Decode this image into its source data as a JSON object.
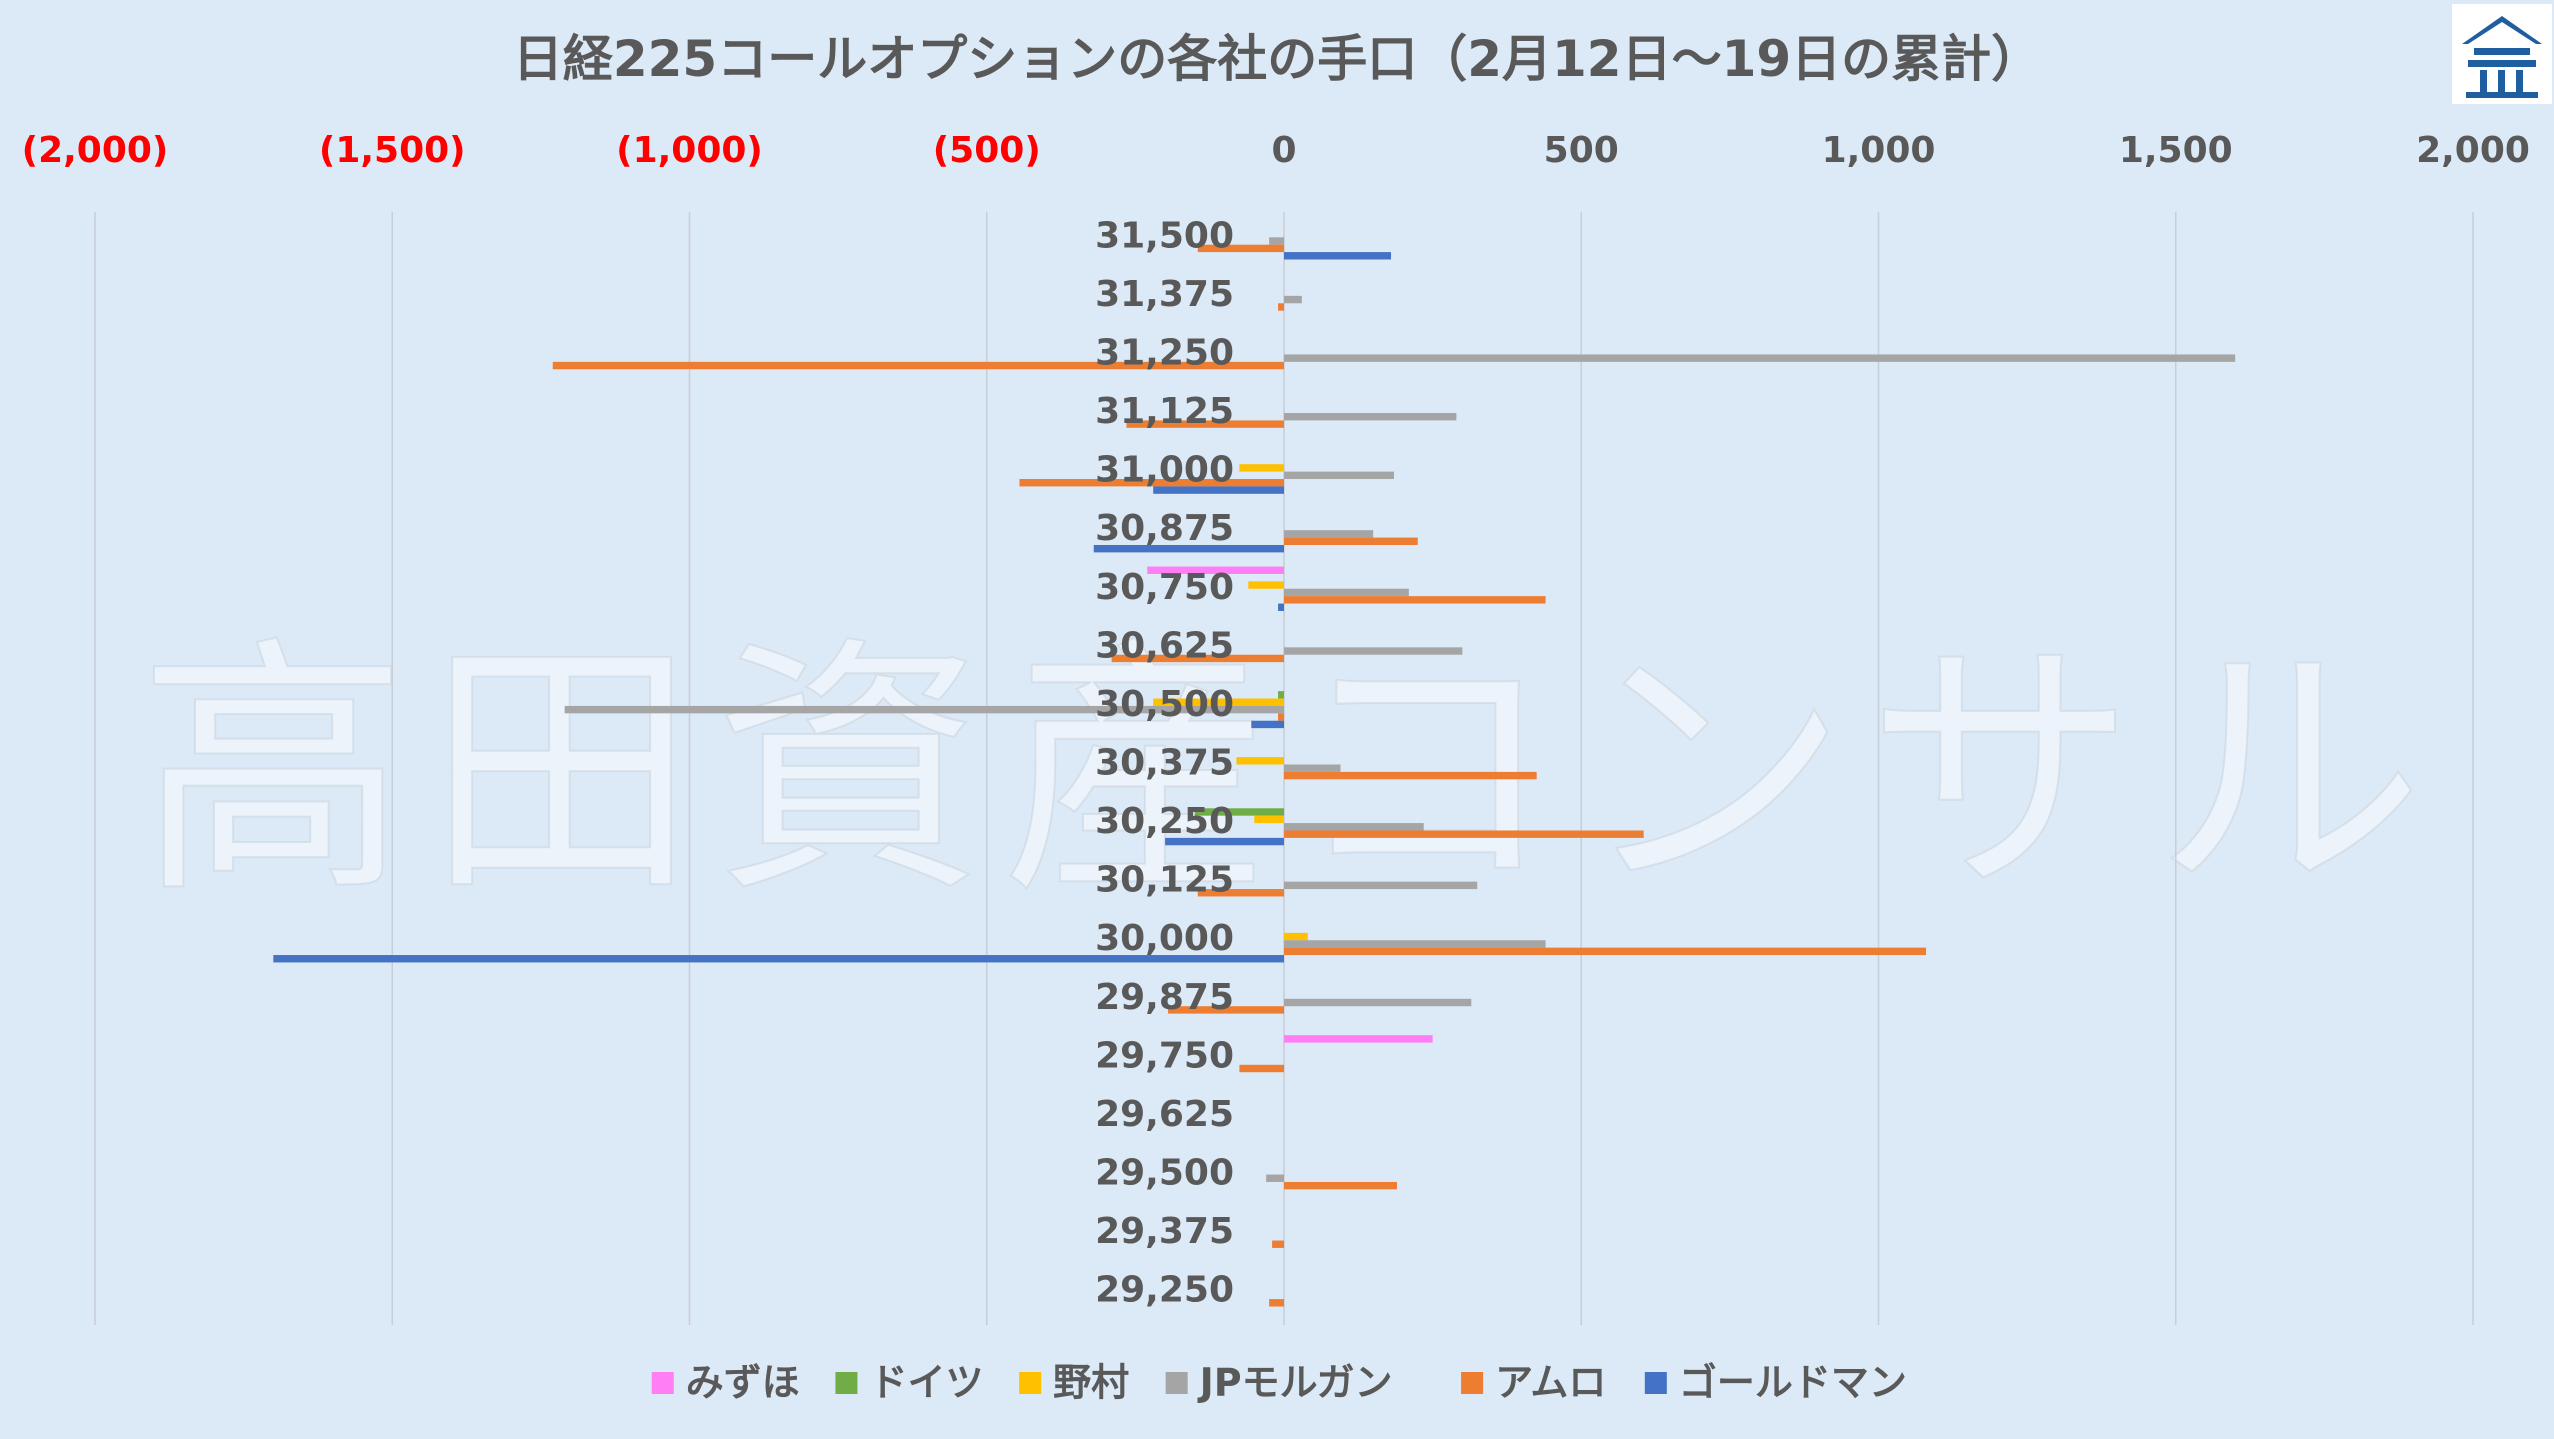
{
  "chart_data": {
    "type": "bar",
    "orientation": "horizontal",
    "title": "日経225コールオプションの各社の手口（2月12日～19日の累計）",
    "watermark": "高田資産コンサル",
    "xlim": [
      -2000,
      2000
    ],
    "x_ticks": [
      -2000,
      -1500,
      -1000,
      -500,
      0,
      500,
      1000,
      1500,
      2000
    ],
    "x_tick_labels": [
      "(2,000)",
      "(1,500)",
      "(1,000)",
      "(500)",
      "0",
      "500",
      "1,000",
      "1,500",
      "2,000"
    ],
    "negative_tick_color": "#ff0000",
    "positive_tick_color": "#595959",
    "grid": true,
    "legend_position": "bottom",
    "categories": [
      "31,500",
      "31,375",
      "31,250",
      "31,125",
      "31,000",
      "30,875",
      "30,750",
      "30,625",
      "30,500",
      "30,375",
      "30,250",
      "30,125",
      "30,000",
      "29,875",
      "29,750",
      "29,625",
      "29,500",
      "29,375",
      "29,250"
    ],
    "series": [
      {
        "name": "みずほ",
        "color": "#ff7df5",
        "values": [
          0,
          0,
          0,
          0,
          0,
          0,
          -230,
          0,
          0,
          0,
          0,
          0,
          0,
          0,
          250,
          0,
          0,
          0,
          0
        ]
      },
      {
        "name": "ドイツ",
        "color": "#70ad47",
        "values": [
          0,
          0,
          0,
          0,
          0,
          0,
          0,
          0,
          -10,
          0,
          -150,
          0,
          0,
          0,
          0,
          0,
          0,
          0,
          0
        ]
      },
      {
        "name": "野村",
        "color": "#ffc000",
        "values": [
          0,
          0,
          0,
          0,
          -75,
          0,
          -60,
          0,
          -220,
          -80,
          -50,
          0,
          40,
          0,
          0,
          0,
          0,
          0,
          0
        ]
      },
      {
        "name": "JPモルガン",
        "color": "#a5a5a5",
        "values": [
          -25,
          30,
          1600,
          290,
          185,
          150,
          210,
          300,
          -1210,
          95,
          235,
          325,
          440,
          315,
          0,
          0,
          -30,
          0,
          0
        ]
      },
      {
        "name": "アムロ",
        "color": "#ed7d31",
        "values": [
          -145,
          -10,
          -1230,
          -265,
          -445,
          225,
          440,
          -290,
          -10,
          425,
          605,
          -145,
          1080,
          -195,
          -75,
          0,
          190,
          -20,
          -25
        ]
      },
      {
        "name": "ゴールドマン",
        "color": "#4472c4",
        "values": [
          180,
          0,
          0,
          0,
          -220,
          -320,
          -10,
          0,
          -55,
          0,
          -200,
          0,
          -1700,
          0,
          0,
          0,
          0,
          0,
          0
        ]
      }
    ]
  },
  "logo": {
    "name": "takata-logo",
    "color": "#1f5fa0"
  }
}
